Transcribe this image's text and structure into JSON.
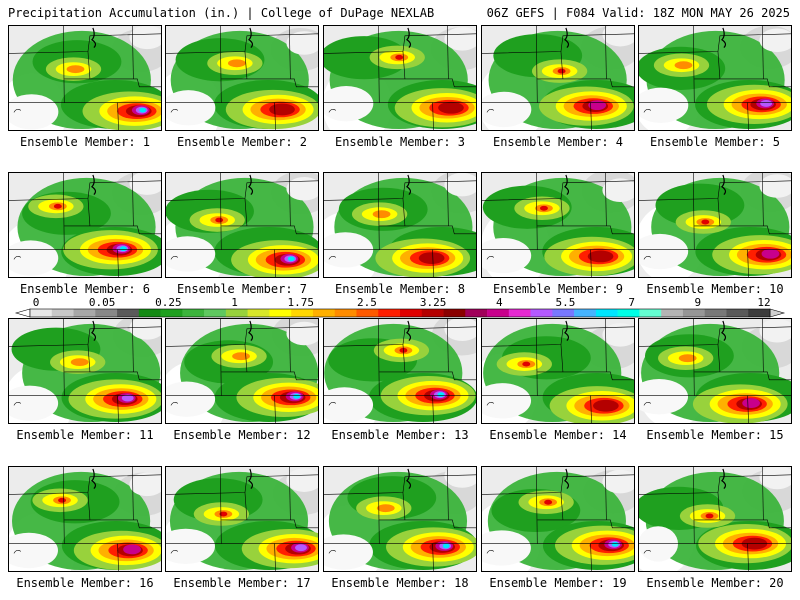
{
  "header": {
    "left": "Precipitation Accumulation (in.) | College of DuPage NEXLAB",
    "right": "06Z GEFS | F084 Valid: 18Z MON MAY 26 2025"
  },
  "colorbar": {
    "labels": [
      "0",
      "0.05",
      "0.25",
      "1",
      "1.75",
      "2.5",
      "3.25",
      "4",
      "5.5",
      "7",
      "9",
      "12"
    ],
    "colors": [
      "#e8e8e8",
      "#c8c8c8",
      "#a8a8a8",
      "#888888",
      "#5a5a5a",
      "#138a13",
      "#1fa01f",
      "#3cb43c",
      "#5fc85f",
      "#98d23c",
      "#d8e629",
      "#ffff00",
      "#ffd700",
      "#ffb000",
      "#ff8c00",
      "#ff5a00",
      "#ff1e00",
      "#e00000",
      "#b40000",
      "#8a0000",
      "#a0005a",
      "#c8008c",
      "#e628d2",
      "#b45aff",
      "#7878ff",
      "#46b4ff",
      "#00e6ff",
      "#00ffe6",
      "#64ffd2",
      "#b4b4b4",
      "#969696",
      "#787878",
      "#5a5a5a",
      "#3c3c3c"
    ]
  },
  "members": [
    {
      "label": "Ensemble Member: 1"
    },
    {
      "label": "Ensemble Member: 2"
    },
    {
      "label": "Ensemble Member: 3"
    },
    {
      "label": "Ensemble Member: 4"
    },
    {
      "label": "Ensemble Member: 5"
    },
    {
      "label": "Ensemble Member: 6"
    },
    {
      "label": "Ensemble Member: 7"
    },
    {
      "label": "Ensemble Member: 8"
    },
    {
      "label": "Ensemble Member: 9"
    },
    {
      "label": "Ensemble Member: 10"
    },
    {
      "label": "Ensemble Member: 11"
    },
    {
      "label": "Ensemble Member: 12"
    },
    {
      "label": "Ensemble Member: 13"
    },
    {
      "label": "Ensemble Member: 14"
    },
    {
      "label": "Ensemble Member: 15"
    },
    {
      "label": "Ensemble Member: 16"
    },
    {
      "label": "Ensemble Member: 17"
    },
    {
      "label": "Ensemble Member: 18"
    },
    {
      "label": "Ensemble Member: 19"
    },
    {
      "label": "Ensemble Member: 20"
    }
  ]
}
